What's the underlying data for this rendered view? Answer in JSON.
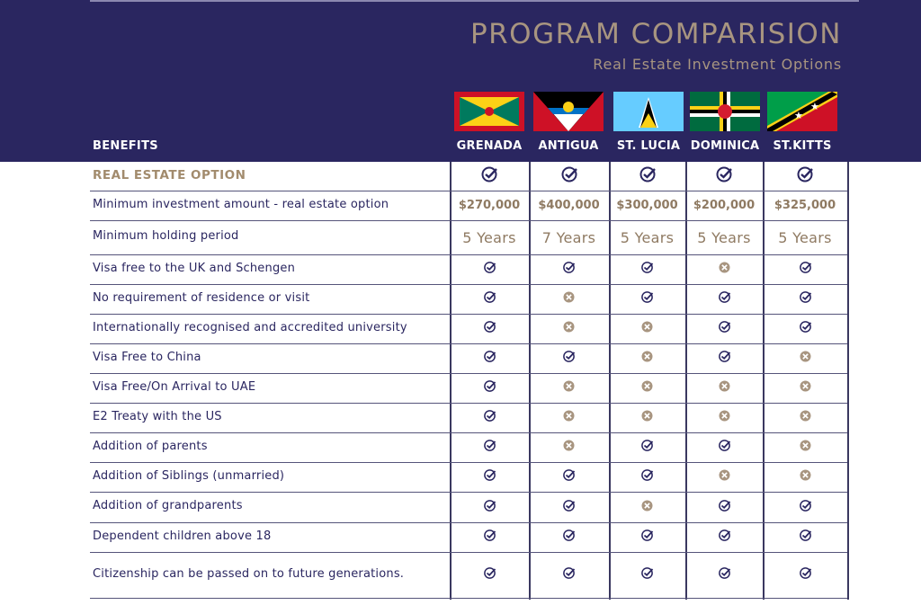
{
  "header": {
    "title": "PROGRAM COMPARISION",
    "subtitle": "Real Estate Investment Options",
    "benefits_label": "BENEFITS"
  },
  "colors": {
    "band": "#2a2660",
    "accent": "#a89580",
    "check": "#2a2660",
    "cross": "#a89580"
  },
  "countries": [
    {
      "name": "GRENADA",
      "flag": "grenada-flag"
    },
    {
      "name": "ANTIGUA",
      "flag": "antigua-flag"
    },
    {
      "name": "ST. LUCIA",
      "flag": "st-lucia-flag"
    },
    {
      "name": "DOMINICA",
      "flag": "dominica-flag"
    },
    {
      "name": "ST.KITTS",
      "flag": "st-kitts-flag"
    }
  ],
  "rows": [
    {
      "label": "REAL ESTATE OPTION",
      "type": "section",
      "values": [
        "yes",
        "yes",
        "yes",
        "yes",
        "yes"
      ]
    },
    {
      "label": "Minimum investment amount - real estate option",
      "type": "amount",
      "values": [
        "$270,000",
        "$400,000",
        "$300,000",
        "$200,000",
        "$325,000"
      ]
    },
    {
      "label": "Minimum holding period",
      "type": "years",
      "values": [
        "5 Years",
        "7 Years",
        "5 Years",
        "5 Years",
        "5 Years"
      ]
    },
    {
      "label": "Visa free to the UK and Schengen",
      "type": "bool",
      "values": [
        "yes",
        "yes",
        "yes",
        "no",
        "yes"
      ]
    },
    {
      "label": "No requirement of residence or visit",
      "type": "bool",
      "values": [
        "yes",
        "no",
        "yes",
        "yes",
        "yes"
      ]
    },
    {
      "label": "Internationally recognised and accredited university",
      "type": "bool",
      "values": [
        "yes",
        "no",
        "no",
        "yes",
        "yes"
      ]
    },
    {
      "label": "Visa Free to China",
      "type": "bool",
      "values": [
        "yes",
        "yes",
        "no",
        "yes",
        "no"
      ]
    },
    {
      "label": "Visa Free/On Arrival to UAE",
      "type": "bool",
      "values": [
        "yes",
        "no",
        "no",
        "no",
        "no"
      ]
    },
    {
      "label": "E2 Treaty with the US",
      "type": "bool",
      "values": [
        "yes",
        "no",
        "no",
        "no",
        "no"
      ]
    },
    {
      "label": "Addition of parents",
      "type": "bool",
      "values": [
        "yes",
        "no",
        "yes",
        "yes",
        "no"
      ]
    },
    {
      "label": "Addition of Siblings (unmarried)",
      "type": "bool",
      "values": [
        "yes",
        "yes",
        "yes",
        "no",
        "no"
      ]
    },
    {
      "label": "Addition of grandparents",
      "type": "bool",
      "values": [
        "yes",
        "yes",
        "no",
        "yes",
        "yes"
      ]
    },
    {
      "label": "Dependent children above 18",
      "type": "bool",
      "values": [
        "yes",
        "yes",
        "yes",
        "yes",
        "yes"
      ]
    },
    {
      "label": "Citizenship can be passed on to future generations.",
      "type": "bool",
      "values": [
        "yes",
        "yes",
        "yes",
        "yes",
        "yes"
      ]
    }
  ]
}
